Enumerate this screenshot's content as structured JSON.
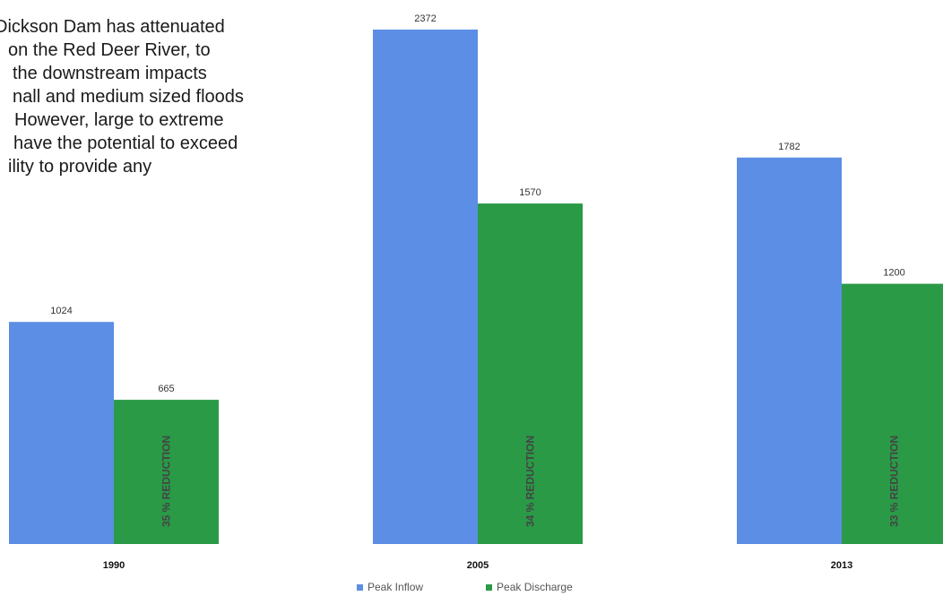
{
  "intro_lines": [
    "Dickson Dam has attenuated",
    "on the Red Deer River, to",
    "the downstream impacts",
    "nall and medium sized floods",
    "However, large to extreme",
    "have the potential to exceed",
    "ility to provide any"
  ],
  "colors": {
    "peak_inflow": "#5b8ee4",
    "peak_discharge": "#2a9a47"
  },
  "legend": {
    "peak_inflow": "Peak Inflow",
    "peak_discharge": "Peak Discharge"
  },
  "chart_data": {
    "type": "bar",
    "categories": [
      "1990",
      "2005",
      "2013"
    ],
    "series": [
      {
        "name": "Peak Inflow",
        "values": [
          1024,
          2372,
          1782
        ]
      },
      {
        "name": "Peak Discharge",
        "values": [
          665,
          1570,
          1200
        ]
      }
    ],
    "annotations": [
      "35 % REDUCTION",
      "34 % REDUCTION",
      "33 % REDUCTION"
    ],
    "ylim": [
      0,
      2372
    ],
    "legend_position": "bottom",
    "grid": false
  }
}
